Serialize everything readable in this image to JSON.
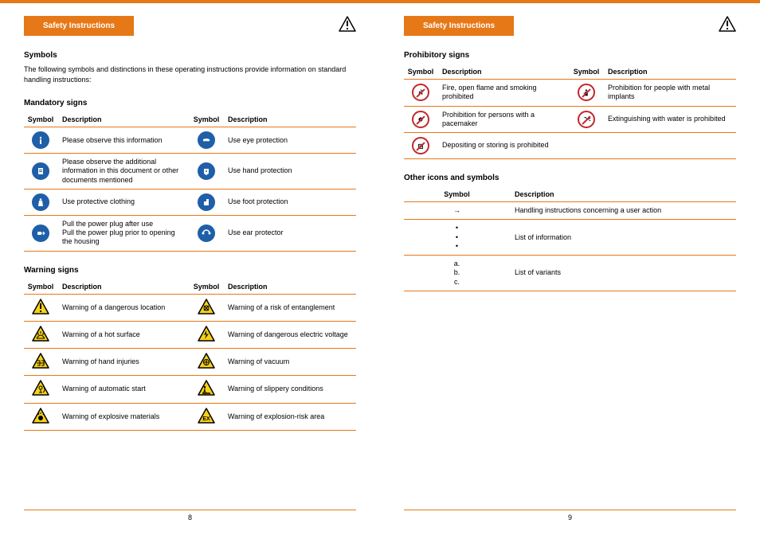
{
  "colors": {
    "accent": "#e67817",
    "mandatory": "#1f5fa8",
    "warning_fill": "#f7d117",
    "prohibition": "#c1272d",
    "text": "#000000"
  },
  "left": {
    "header": "Safety Instructions",
    "page_number": "8",
    "symbols_title": "Symbols",
    "symbols_intro": "The following symbols and distinctions in these operating instructions provide information on standard handling instructions:",
    "mandatory_title": "Mandatory signs",
    "mandatory_headers": {
      "c1": "Symbol",
      "c2": "Description",
      "c3": "Symbol",
      "c4": "Description"
    },
    "mandatory_rows": [
      {
        "d1": "Please observe this information",
        "d2": "Use eye protection"
      },
      {
        "d1": "Please observe the additional information in this document or other documents mentioned",
        "d2": "Use hand protection"
      },
      {
        "d1": "Use protective clothing",
        "d2": "Use foot protection"
      },
      {
        "d1": "Pull the power plug after use\nPull the power plug prior to opening the housing",
        "d2": "Use ear protector"
      }
    ],
    "warning_title": "Warning signs",
    "warning_headers": {
      "c1": "Symbol",
      "c2": "Description",
      "c3": "Symbol",
      "c4": "Description"
    },
    "warning_rows": [
      {
        "d1": "Warning of a dangerous location",
        "d2": "Warning of a risk of entanglement"
      },
      {
        "d1": "Warning of a hot surface",
        "d2": "Warning of dangerous electric voltage"
      },
      {
        "d1": "Warning of hand injuries",
        "d2": "Warning of vacuum"
      },
      {
        "d1": "Warning of automatic start",
        "d2": "Warning of slippery conditions"
      },
      {
        "d1": "Warning of explosive materials",
        "d2": "Warning of explosion-risk area"
      }
    ]
  },
  "right": {
    "header": "Safety Instructions",
    "page_number": "9",
    "prohibitory_title": "Prohibitory signs",
    "prohibitory_headers": {
      "c1": "Symbol",
      "c2": "Description",
      "c3": "Symbol",
      "c4": "Description"
    },
    "prohibitory_rows": [
      {
        "d1": "Fire, open flame and smoking prohibited",
        "d2": "Prohibition for people with metal implants"
      },
      {
        "d1": "Prohibition for persons with a pacemaker",
        "d2": "Extinguishing with water is prohibited"
      },
      {
        "d1": "Depositing or storing is prohibited",
        "d2": ""
      }
    ],
    "other_title": "Other icons and symbols",
    "other_headers": {
      "c1": "Symbol",
      "c2": "Description"
    },
    "other_rows": [
      {
        "sym": "→",
        "desc": "Handling instructions concerning a user action"
      },
      {
        "sym": "•\n•\n•",
        "desc": "List of information"
      },
      {
        "sym": "a.\nb.\nc.",
        "desc": "List of variants"
      }
    ]
  }
}
